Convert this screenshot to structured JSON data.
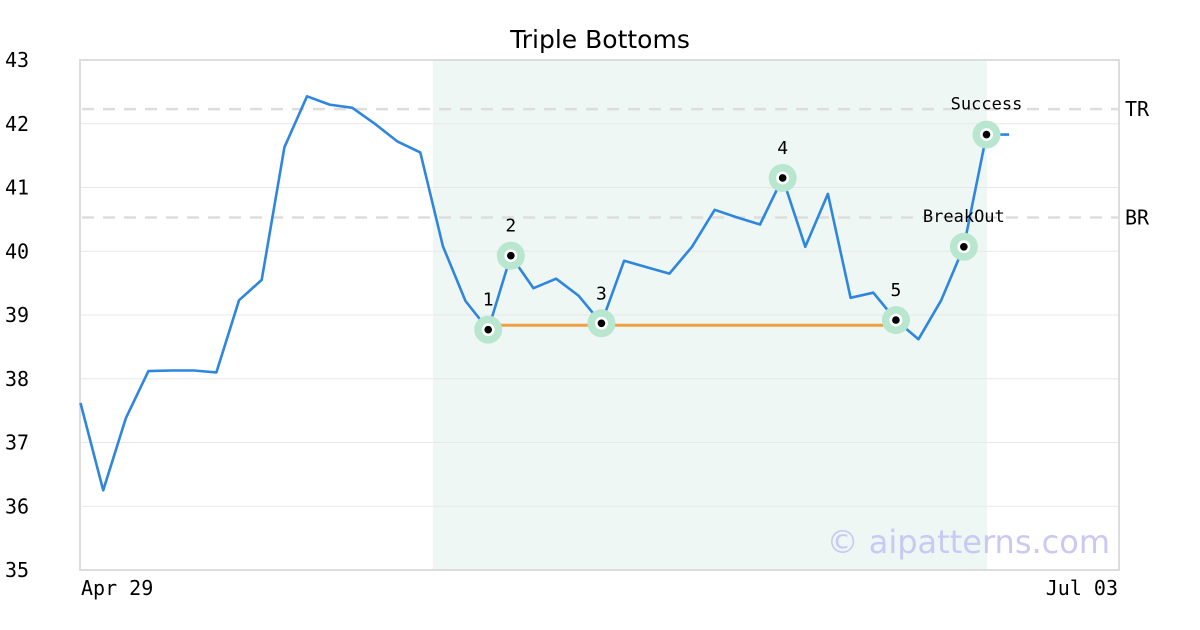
{
  "chart_data": {
    "type": "line",
    "title": "Triple Bottoms",
    "x_labels": [
      "Apr 29",
      "Jul 03"
    ],
    "ylim": [
      35,
      43
    ],
    "y_ticks": [
      35,
      36,
      37,
      38,
      39,
      40,
      41,
      42,
      43
    ],
    "grid": true,
    "series": [
      {
        "color": "#2e86de",
        "values": [
          37.62,
          36.25,
          37.38,
          38.12,
          38.13,
          38.13,
          38.1,
          39.23,
          39.55,
          41.63,
          42.43,
          42.3,
          42.25,
          42.0,
          41.72,
          41.55,
          40.08,
          39.22,
          38.77,
          39.93,
          39.42,
          39.57,
          39.3,
          38.87,
          39.85,
          39.75,
          39.65,
          40.07,
          40.65,
          40.53,
          40.42,
          41.15,
          40.07,
          40.9,
          39.27,
          39.35,
          38.92,
          38.62,
          39.23,
          40.07,
          41.83,
          41.83
        ]
      }
    ],
    "levels": [
      {
        "label": "TR",
        "value": 42.23,
        "color": "#dddddd"
      },
      {
        "label": "BR",
        "value": 40.53,
        "color": "#dddddd"
      }
    ],
    "support_line": {
      "value": 38.84,
      "from_index": 18,
      "to_index": 36,
      "color": "#f0a040"
    },
    "pattern_range": {
      "from_index": 16,
      "to_index": 40,
      "color": "#eef7f3"
    },
    "markers": [
      {
        "label": "1",
        "index": 18,
        "value": 38.77
      },
      {
        "label": "2",
        "index": 19,
        "value": 39.93
      },
      {
        "label": "3",
        "index": 23,
        "value": 38.87
      },
      {
        "label": "4",
        "index": 31,
        "value": 41.15
      },
      {
        "label": "5",
        "index": 36,
        "value": 38.92
      },
      {
        "label": "BreakOut",
        "index": 39,
        "value": 40.07
      },
      {
        "label": "Success",
        "index": 40,
        "value": 41.83
      }
    ],
    "marker_color": "#b8e6cf",
    "watermark": "© aipatterns.com"
  }
}
